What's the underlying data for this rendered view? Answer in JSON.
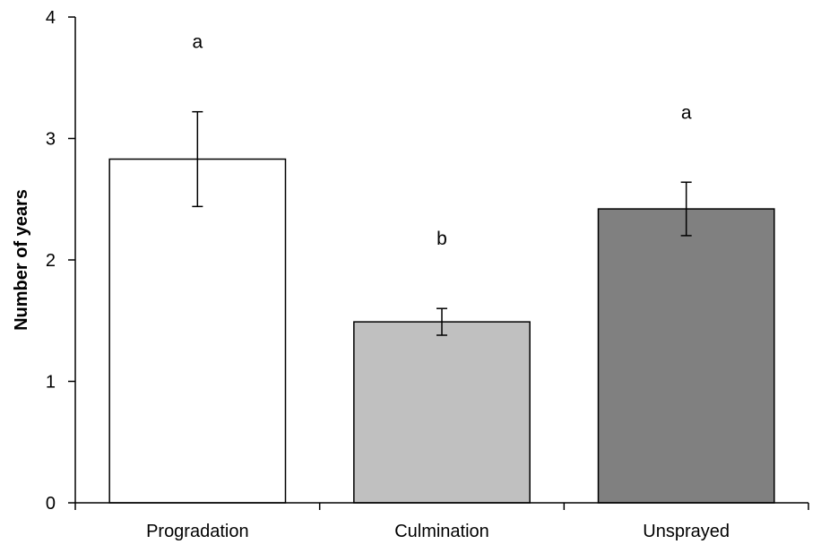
{
  "chart_data": {
    "type": "bar",
    "title": "",
    "xlabel": "",
    "ylabel": "Number of years",
    "ylim": [
      0,
      4
    ],
    "yticks": [
      0,
      1,
      2,
      3,
      4
    ],
    "grid": false,
    "categories": [
      "Progradation",
      "Culmination",
      "Unsprayed"
    ],
    "values": [
      2.83,
      1.49,
      2.42
    ],
    "errors": [
      0.39,
      0.11,
      0.22
    ],
    "significance_labels": [
      "a",
      "b",
      "a"
    ],
    "bar_colors": [
      "#ffffff",
      "#c0c0c0",
      "#808080"
    ]
  }
}
